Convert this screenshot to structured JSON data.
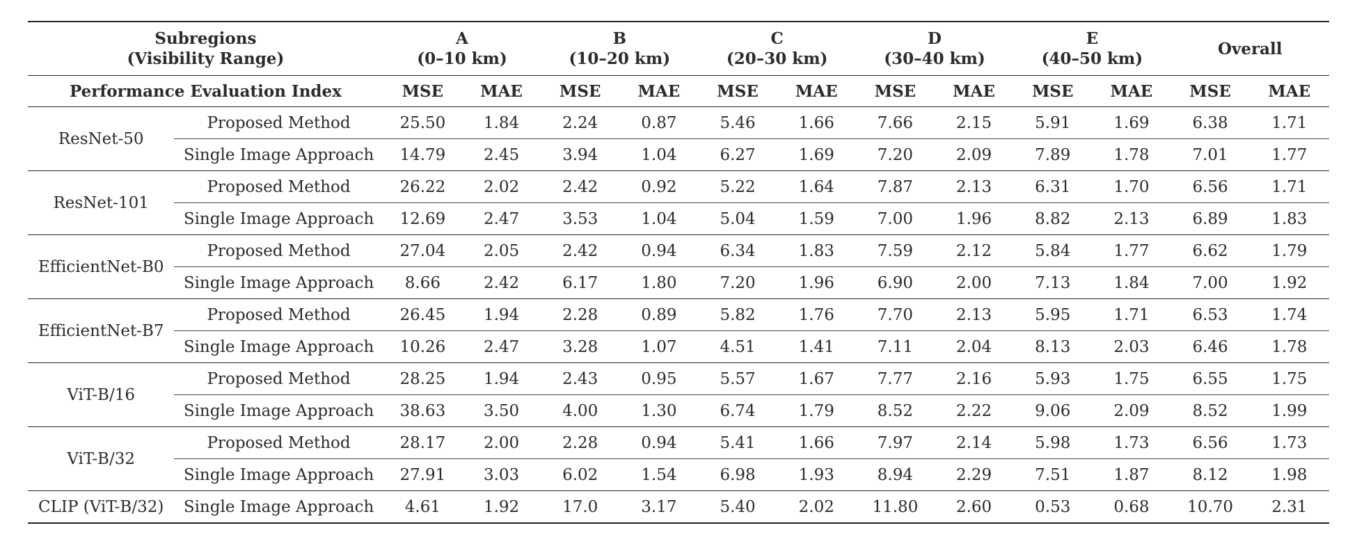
{
  "header": {
    "subregions_line1": "Subregions",
    "subregions_line2": "(Visibility Range)",
    "regions": [
      {
        "name": "A",
        "range": "(0–10 km)"
      },
      {
        "name": "B",
        "range": "(10–20 km)"
      },
      {
        "name": "C",
        "range": "(20–30 km)"
      },
      {
        "name": "D",
        "range": "(30–40 km)"
      },
      {
        "name": "E",
        "range": "(40–50 km)"
      }
    ],
    "overall": "Overall",
    "index_label": "Performance Evaluation Index",
    "mse": "MSE",
    "mae": "MAE"
  },
  "groups": [
    {
      "model": "ResNet-50",
      "rows": [
        {
          "method": "Proposed Method",
          "values": [
            "25.50",
            "1.84",
            "2.24",
            "0.87",
            "5.46",
            "1.66",
            "7.66",
            "2.15",
            "5.91",
            "1.69",
            "6.38",
            "1.71"
          ]
        },
        {
          "method": "Single Image Approach",
          "values": [
            "14.79",
            "2.45",
            "3.94",
            "1.04",
            "6.27",
            "1.69",
            "7.20",
            "2.09",
            "7.89",
            "1.78",
            "7.01",
            "1.77"
          ]
        }
      ]
    },
    {
      "model": "ResNet-101",
      "rows": [
        {
          "method": "Proposed Method",
          "values": [
            "26.22",
            "2.02",
            "2.42",
            "0.92",
            "5.22",
            "1.64",
            "7.87",
            "2.13",
            "6.31",
            "1.70",
            "6.56",
            "1.71"
          ]
        },
        {
          "method": "Single Image Approach",
          "values": [
            "12.69",
            "2.47",
            "3.53",
            "1.04",
            "5.04",
            "1.59",
            "7.00",
            "1.96",
            "8.82",
            "2.13",
            "6.89",
            "1.83"
          ]
        }
      ]
    },
    {
      "model": "EfficientNet-B0",
      "rows": [
        {
          "method": "Proposed Method",
          "values": [
            "27.04",
            "2.05",
            "2.42",
            "0.94",
            "6.34",
            "1.83",
            "7.59",
            "2.12",
            "5.84",
            "1.77",
            "6.62",
            "1.79"
          ]
        },
        {
          "method": "Single Image Approach",
          "values": [
            "8.66",
            "2.42",
            "6.17",
            "1.80",
            "7.20",
            "1.96",
            "6.90",
            "2.00",
            "7.13",
            "1.84",
            "7.00",
            "1.92"
          ]
        }
      ]
    },
    {
      "model": "EfficientNet-B7",
      "rows": [
        {
          "method": "Proposed Method",
          "values": [
            "26.45",
            "1.94",
            "2.28",
            "0.89",
            "5.82",
            "1.76",
            "7.70",
            "2.13",
            "5.95",
            "1.71",
            "6.53",
            "1.74"
          ]
        },
        {
          "method": "Single Image Approach",
          "values": [
            "10.26",
            "2.47",
            "3.28",
            "1.07",
            "4.51",
            "1.41",
            "7.11",
            "2.04",
            "8.13",
            "2.03",
            "6.46",
            "1.78"
          ]
        }
      ]
    },
    {
      "model": "ViT-B/16",
      "rows": [
        {
          "method": "Proposed Method",
          "values": [
            "28.25",
            "1.94",
            "2.43",
            "0.95",
            "5.57",
            "1.67",
            "7.77",
            "2.16",
            "5.93",
            "1.75",
            "6.55",
            "1.75"
          ]
        },
        {
          "method": "Single Image Approach",
          "values": [
            "38.63",
            "3.50",
            "4.00",
            "1.30",
            "6.74",
            "1.79",
            "8.52",
            "2.22",
            "9.06",
            "2.09",
            "8.52",
            "1.99"
          ]
        }
      ]
    },
    {
      "model": "ViT-B/32",
      "rows": [
        {
          "method": "Proposed Method",
          "values": [
            "28.17",
            "2.00",
            "2.28",
            "0.94",
            "5.41",
            "1.66",
            "7.97",
            "2.14",
            "5.98",
            "1.73",
            "6.56",
            "1.73"
          ]
        },
        {
          "method": "Single Image Approach",
          "values": [
            "27.91",
            "3.03",
            "6.02",
            "1.54",
            "6.98",
            "1.93",
            "8.94",
            "2.29",
            "7.51",
            "1.87",
            "8.12",
            "1.98"
          ]
        }
      ]
    },
    {
      "model": "CLIP (ViT-B/32)",
      "rows": [
        {
          "method": "Single Image Approach",
          "values": [
            "4.61",
            "1.92",
            "17.0",
            "3.17",
            "5.40",
            "2.02",
            "11.80",
            "2.60",
            "0.53",
            "0.68",
            "10.70",
            "2.31"
          ]
        }
      ]
    }
  ]
}
